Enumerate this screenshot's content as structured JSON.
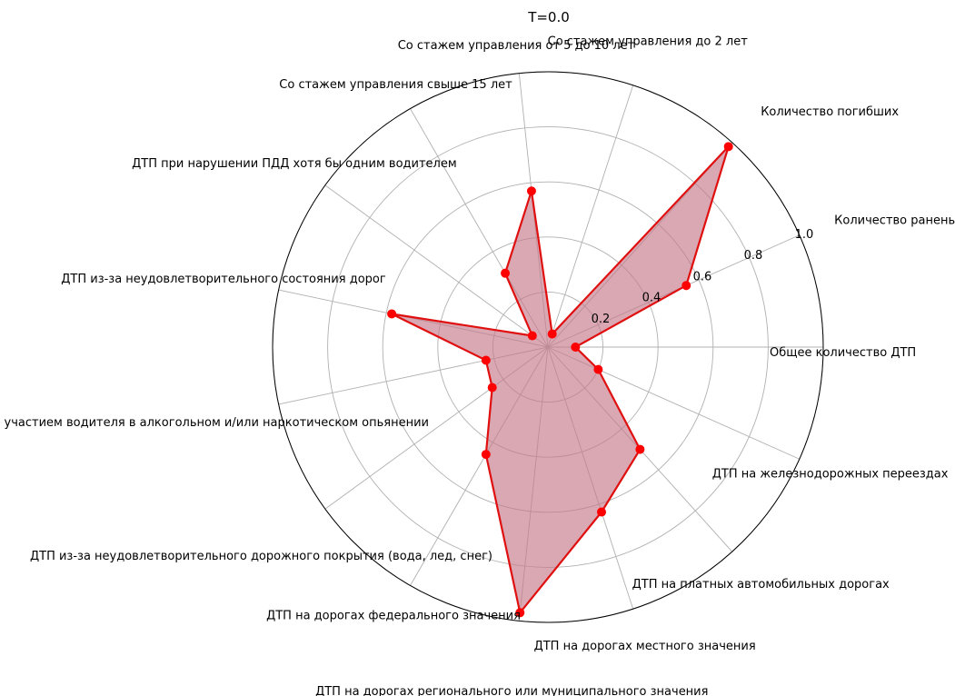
{
  "chart_data": {
    "type": "radar",
    "title": "T=0.0",
    "rlim": [
      0,
      1.0
    ],
    "r_ticks": [
      0.2,
      0.4,
      0.6,
      0.8,
      1.0
    ],
    "r_tick_labels": [
      "0.2",
      "0.4",
      "0.6",
      "0.8",
      "1.0"
    ],
    "grid": true,
    "colors": {
      "line": "#e01010",
      "fill": "#c47a8a",
      "marker": "#ff0000",
      "grid": "#b0b0b0"
    },
    "categories": [
      "Общее количество ДТП",
      "Количество раненых",
      "Количество погибших",
      "Со стажем управления до 2 лет",
      "Со стажем управления от 5 до 10 лет",
      "Со стажем управления свыше 15 лет",
      "ДТП при нарушении ПДД хотя бы одним водителем",
      "ДТП из-за неудовлетворительного состояния дорог",
      "ДТП с участием водителя в алкогольном и/или наркотическом опьянении",
      "ДТП из-за неудовлетворительного дорожного покрытия (вода, лед, снег)",
      "ДТП на дорогах федерального значения",
      "ДТП на дорогах регионального или муниципального значения",
      "ДТП на дорогах местного значения",
      "ДТП на платных автомобильных дорогах",
      "ДТП на железнодорожных переездах"
    ],
    "values": [
      0.1,
      0.55,
      0.98,
      0.05,
      0.57,
      0.31,
      0.07,
      0.58,
      0.23,
      0.25,
      0.45,
      0.97,
      0.63,
      0.5,
      0.2
    ]
  }
}
